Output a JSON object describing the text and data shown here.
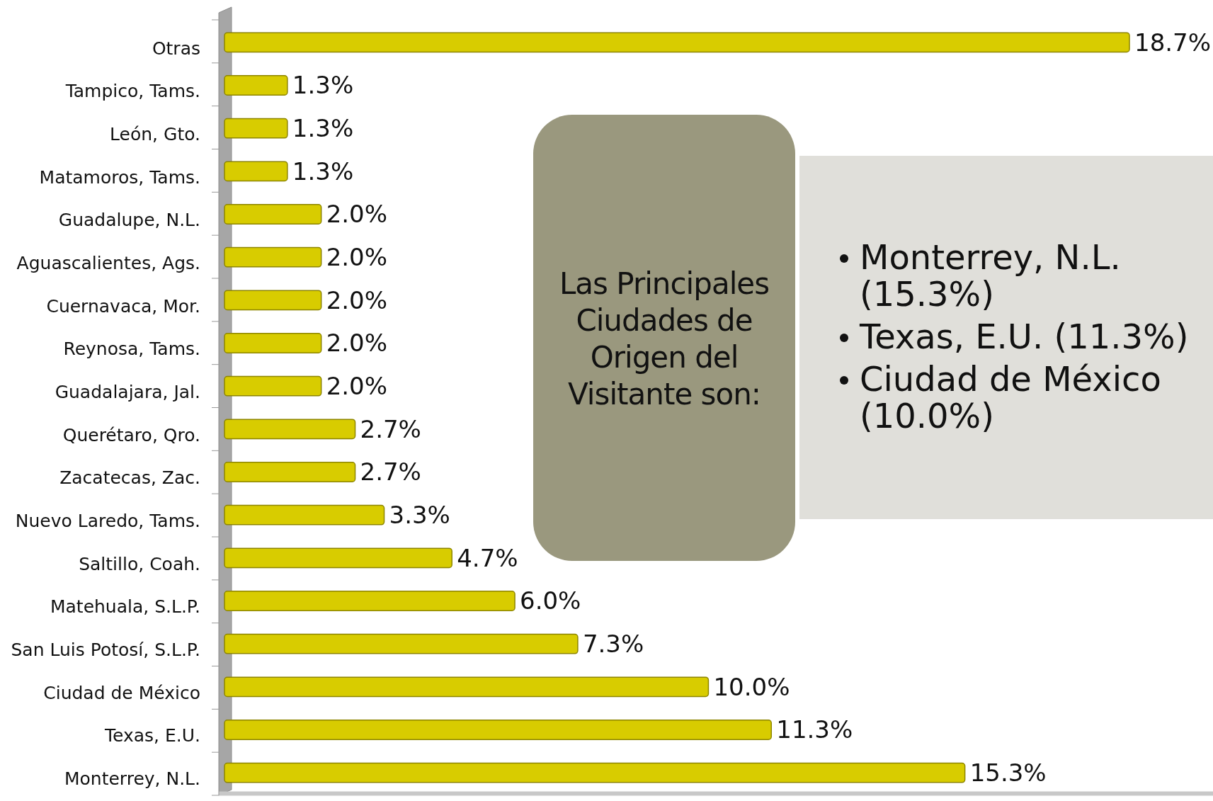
{
  "chart_data": {
    "type": "bar",
    "orientation": "horizontal",
    "categories": [
      "Otras",
      "Tampico, Tams.",
      "León, Gto.",
      "Matamoros, Tams.",
      "Guadalupe, N.L.",
      "Aguascalientes, Ags.",
      "Cuernavaca, Mor.",
      "Reynosa, Tams.",
      "Guadalajara, Jal.",
      "Querétaro, Qro.",
      "Zacatecas, Zac.",
      "Nuevo Laredo, Tams.",
      "Saltillo, Coah.",
      "Matehuala, S.L.P.",
      "San Luis Potosí, S.L.P.",
      "Ciudad de México",
      "Texas, E.U.",
      "Monterrey, N.L."
    ],
    "values": [
      18.7,
      1.3,
      1.3,
      1.3,
      2.0,
      2.0,
      2.0,
      2.0,
      2.0,
      2.7,
      2.7,
      3.3,
      4.7,
      6.0,
      7.3,
      10.0,
      11.3,
      15.3
    ],
    "value_labels": [
      "18.7%",
      "1.3%",
      "1.3%",
      "1.3%",
      "2.0%",
      "2.0%",
      "2.0%",
      "2.0%",
      "2.0%",
      "2.7%",
      "2.7%",
      "3.3%",
      "4.7%",
      "6.0%",
      "7.3%",
      "10.0%",
      "11.3%",
      "15.3%"
    ],
    "color": "#d8cc00",
    "xlim": [
      0,
      18.7
    ],
    "annotations": [
      "Las Principales Ciudades de Origen del Visitante son:",
      "Monterrey, N.L. (15.3%)",
      "Texas, E.U. (11.3%)",
      "Ciudad de México (10.0%)"
    ]
  }
}
